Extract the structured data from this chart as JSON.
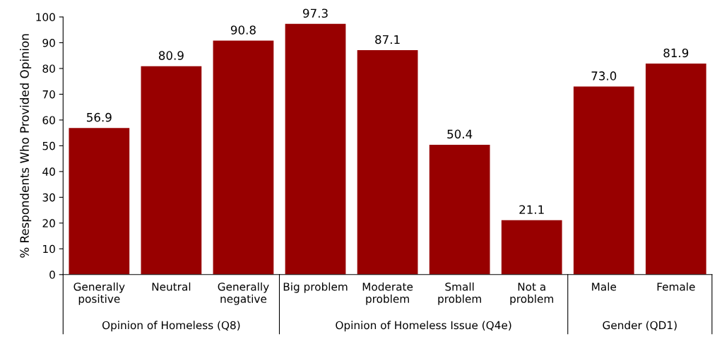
{
  "chart_data": {
    "type": "bar",
    "ylabel": "% Respondents Who Provided Opinion",
    "categories": [
      "Generally\npositive",
      "Neutral",
      "Generally\nnegative",
      "Big problem",
      "Moderate\nproblem",
      "Small\nproblem",
      "Not a\nproblem",
      "Male",
      "Female"
    ],
    "values": [
      56.9,
      80.9,
      90.8,
      97.3,
      87.1,
      50.4,
      21.1,
      73.0,
      81.9
    ],
    "value_labels": [
      "56.9",
      "80.9",
      "90.8",
      "97.3",
      "87.1",
      "50.4",
      "21.1",
      "73.0",
      "81.9"
    ],
    "color": "#980000",
    "ylim": [
      0,
      100
    ],
    "yticks": [
      0,
      10,
      20,
      30,
      40,
      50,
      60,
      70,
      80,
      90,
      100
    ],
    "grid": false,
    "annotations": [
      "Opinion of Homeless (Q8)",
      "Opinion of Homeless Issue (Q4e)",
      "Gender (QD1)"
    ]
  }
}
